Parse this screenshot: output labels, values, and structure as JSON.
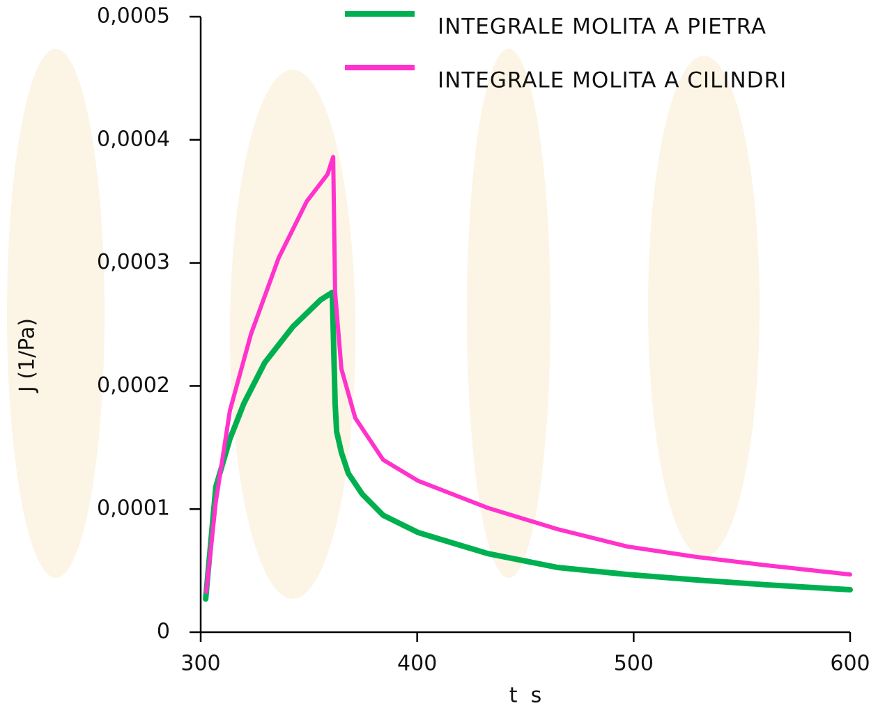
{
  "chart_data": {
    "type": "line",
    "x_label": "t  s",
    "y_label": "J (1/Pa)",
    "series": [
      {
        "name": "INTEGRALE MOLITA A PIETRA",
        "color": "#00b050",
        "x": [
          302.3,
          307,
          313.5,
          320,
          329.6,
          342.5,
          355.4,
          360.8,
          362.1,
          362.8,
          365,
          368.2,
          374.7,
          384.3,
          400.4,
          416.5,
          432.6,
          464.8,
          497,
          529.2,
          561.4,
          600
        ],
        "values": [
          2.7e-05,
          0.000118,
          0.000157,
          0.000186,
          0.000219,
          0.000248,
          0.00027,
          0.000276,
          0.000186,
          0.000163,
          0.000146,
          0.000129,
          0.000112,
          9.5e-05,
          8.1e-05,
          7.24e-05,
          6.39e-05,
          5.26e-05,
          4.69e-05,
          4.24e-05,
          3.85e-05,
          3.45e-05
        ]
      },
      {
        "name": "INTEGRALE MOLITA A CILINDRI",
        "color": "#ff33cc",
        "x": [
          302.6,
          307,
          313.5,
          323.2,
          336,
          349,
          358.6,
          361.2,
          362.1,
          365,
          371.4,
          384.3,
          400.4,
          416.5,
          432.6,
          464.8,
          497,
          529.2,
          561.4,
          600
        ],
        "values": [
          3.28e-05,
          0.000106,
          0.00018,
          0.000242,
          0.000304,
          0.00035,
          0.000372,
          0.000386,
          0.000276,
          0.000214,
          0.000174,
          0.00014,
          0.000123,
          0.000112,
          0.000101,
          8.37e-05,
          6.96e-05,
          6.11e-05,
          5.43e-05,
          4.69e-05
        ]
      }
    ],
    "xlim": [
      300,
      600
    ],
    "xticks": [
      300,
      400,
      500,
      600
    ],
    "ylim": [
      0,
      0.0005
    ],
    "yticks": [
      0,
      {
        "value": 0.0001,
        "label": "0,0001"
      },
      {
        "value": 0.0002,
        "label": "0,0002"
      },
      {
        "value": 0.0003,
        "label": "0,0003"
      },
      {
        "value": 0.0004,
        "label": "0,0004"
      },
      {
        "value": 0.0005,
        "label": "0,0005"
      }
    ]
  }
}
